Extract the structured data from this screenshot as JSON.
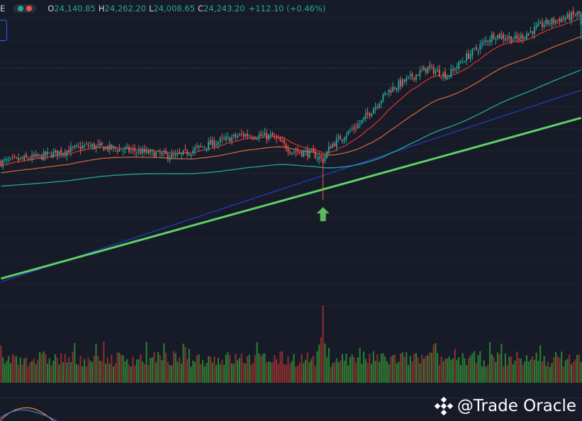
{
  "header": {
    "symbol_tail": "E",
    "ohlc": [
      {
        "label": "O",
        "value": "24,140.85"
      },
      {
        "label": "H",
        "value": "24,262.20"
      },
      {
        "label": "L",
        "value": "24,008.65"
      },
      {
        "label": "C",
        "value": "24,243.20"
      }
    ],
    "change": "+112.10 (+0.46%)"
  },
  "watermark": {
    "text": "@Trade Oracle",
    "icon": "diamond-logo-icon"
  },
  "colors": {
    "up": "#26a69a",
    "down": "#ef5350",
    "vol_up": "#2e7d32",
    "vol_down": "#8b2f2f",
    "ema_fast": "#d3302f",
    "ema_mid": "#d1603d",
    "ema_slow": "#26a69a",
    "ema_200": "#2536a8",
    "trendline": "#5fd068",
    "arrow": "#5cb85c",
    "ref_line": "#1f8f7f"
  },
  "chart_data": {
    "type": "candlestick",
    "last": {
      "open": 24140.85,
      "high": 24262.2,
      "low": 24008.65,
      "close": 24243.2
    },
    "anchors": [
      {
        "x": 0,
        "y": 22900
      },
      {
        "x": 20,
        "y": 22950
      },
      {
        "x": 45,
        "y": 23050
      },
      {
        "x": 70,
        "y": 23000
      },
      {
        "x": 90,
        "y": 22950
      },
      {
        "x": 105,
        "y": 23050
      },
      {
        "x": 125,
        "y": 23150
      },
      {
        "x": 140,
        "y": 23130
      },
      {
        "x": 150,
        "y": 23000
      },
      {
        "x": 160,
        "y": 22980
      },
      {
        "x": 166,
        "y": 22920
      },
      {
        "x": 170,
        "y": 23050
      },
      {
        "x": 185,
        "y": 23250
      },
      {
        "x": 200,
        "y": 23550
      },
      {
        "x": 210,
        "y": 23650
      },
      {
        "x": 220,
        "y": 23750
      },
      {
        "x": 230,
        "y": 23680
      },
      {
        "x": 240,
        "y": 23850
      },
      {
        "x": 254,
        "y": 24050
      },
      {
        "x": 266,
        "y": 24010
      },
      {
        "x": 280,
        "y": 24150
      },
      {
        "x": 299,
        "y": 24243
      }
    ],
    "bars": 300,
    "dip": {
      "index": 166,
      "low": 22560
    },
    "ema_periods": [
      20,
      50,
      100
    ],
    "trendline": {
      "x0": 0,
      "y0": 21850,
      "x1": 299,
      "y1": 23300
    },
    "line_200": {
      "x0": 0,
      "y0": 21820,
      "x1": 299,
      "y1": 23550
    },
    "ref_level": 23750,
    "ylim": [
      21550,
      24300
    ],
    "volume_spike_index": 166
  }
}
